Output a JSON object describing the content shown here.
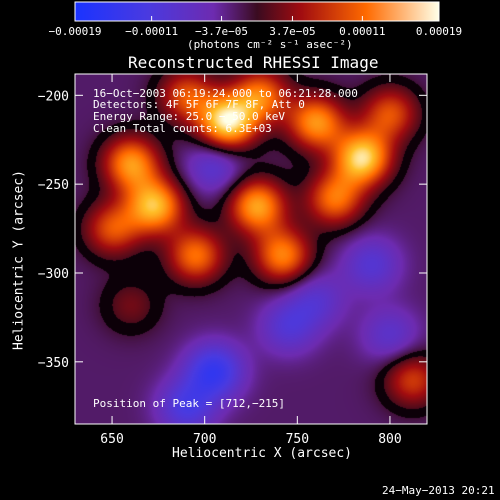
{
  "chart_data": {
    "type": "heatmap",
    "title": "Reconstructed RHESSI Image",
    "xlabel": "Heliocentric X (arcsec)",
    "ylabel": "Heliocentric Y (arcsec)",
    "xlim": [
      630,
      820
    ],
    "ylim": [
      -385,
      -188
    ],
    "x_ticks": [
      650,
      700,
      750,
      800
    ],
    "y_ticks": [
      -200,
      -250,
      -300,
      -350
    ],
    "x_tick_labels": [
      "650",
      "700",
      "750",
      "800"
    ],
    "y_tick_labels": [
      "−200",
      "−250",
      "−300",
      "−350"
    ],
    "colorbar": {
      "range": [
        -0.00019,
        0.00019
      ],
      "tick_values": [
        -0.00019,
        -0.00011,
        -3.7e-05,
        3.7e-05,
        0.00011,
        0.00019
      ],
      "tick_labels": [
        "−0.00019",
        "−0.00011",
        "−3.7e−05",
        "3.7e−05",
        "0.00011",
        "0.00019"
      ],
      "unit_label": "(photons cm⁻² s⁻¹ asec⁻²)"
    },
    "annotations": {
      "time": "16−Oct−2003 06:19:24.000 to 06:21:28.000",
      "detectors": "Detectors: 4F 5F 6F 7F 8F, Att 0",
      "energy": "Energy Range: 25.0 − 50.0 keV",
      "clean": "Clean    Total counts: 6.3E+03",
      "peak": "Position of Peak = [712,−215]"
    },
    "peak_position": [
      712,
      -215
    ],
    "blobs": [
      {
        "x": 712,
        "y": -215,
        "amp": 1.0
      },
      {
        "x": 785,
        "y": -235,
        "amp": 0.95
      },
      {
        "x": 760,
        "y": -215,
        "amp": 0.75
      },
      {
        "x": 730,
        "y": -200,
        "amp": 0.65
      },
      {
        "x": 690,
        "y": -200,
        "amp": 0.55
      },
      {
        "x": 660,
        "y": -238,
        "amp": 0.75
      },
      {
        "x": 673,
        "y": -262,
        "amp": 0.85
      },
      {
        "x": 650,
        "y": -275,
        "amp": 0.55
      },
      {
        "x": 695,
        "y": -290,
        "amp": 0.65
      },
      {
        "x": 728,
        "y": -262,
        "amp": 0.8
      },
      {
        "x": 742,
        "y": -290,
        "amp": 0.7
      },
      {
        "x": 770,
        "y": -258,
        "amp": 0.65
      },
      {
        "x": 800,
        "y": -210,
        "amp": 0.55
      },
      {
        "x": 812,
        "y": -360,
        "amp": 0.5
      },
      {
        "x": 660,
        "y": -318,
        "amp": 0.25
      },
      {
        "x": 705,
        "y": -355,
        "amp": -0.6
      },
      {
        "x": 690,
        "y": -375,
        "amp": -0.45
      },
      {
        "x": 760,
        "y": -315,
        "amp": -0.3
      },
      {
        "x": 790,
        "y": -295,
        "amp": -0.35
      },
      {
        "x": 705,
        "y": -240,
        "amp": -0.35
      },
      {
        "x": 745,
        "y": -330,
        "amp": -0.35
      },
      {
        "x": 800,
        "y": -335,
        "amp": -0.3
      }
    ],
    "grid": false,
    "legend": "none"
  },
  "footer": {
    "timestamp": "24−May−2013 20:21"
  }
}
